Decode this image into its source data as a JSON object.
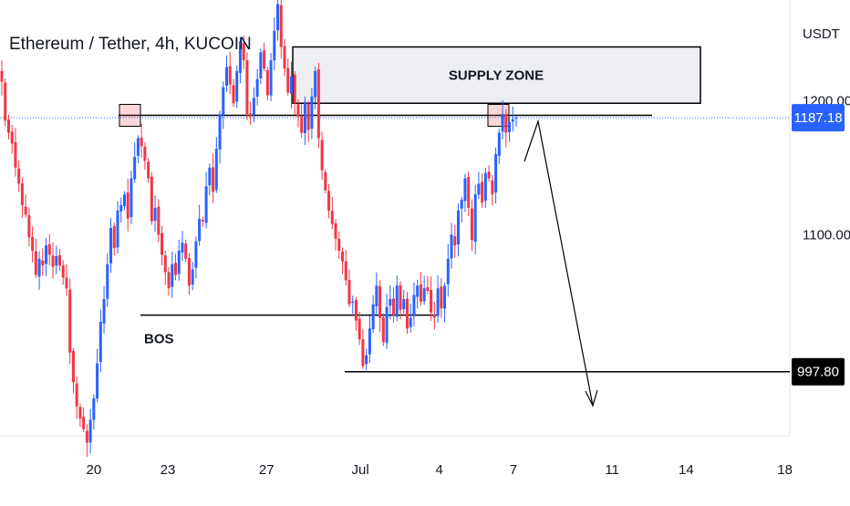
{
  "chart_data": {
    "type": "candlestick",
    "title": "Ethereum / Tether, 4h, KUCOIN",
    "currency": "USDT",
    "y_range": [
      950,
      1275
    ],
    "y_ticks": [
      {
        "value": 1200,
        "label": "1200.00"
      },
      {
        "value": 1100,
        "label": "1100.00"
      }
    ],
    "x_ticks": [
      {
        "x": 20,
        "label": "20"
      },
      {
        "x": 23,
        "label": "23"
      },
      {
        "x": 27,
        "label": "27"
      },
      {
        "x": 30.8,
        "label": "Jul"
      },
      {
        "x": 34,
        "label": "4"
      },
      {
        "x": 37,
        "label": "7"
      },
      {
        "x": 41,
        "label": "11"
      },
      {
        "x": 44,
        "label": "14"
      },
      {
        "x": 48,
        "label": "18"
      }
    ],
    "x_range": [
      16.2,
      48.2
    ],
    "last_price": {
      "value": 1187.18,
      "label": "1187.18"
    },
    "target_price": {
      "value": 997.8,
      "label": "997.80"
    },
    "colors": {
      "up": "#2962ff",
      "down": "#f23645",
      "tag": "#2962ff",
      "target_tag": "#000000"
    },
    "annotations": {
      "supply_zone": "SUPPLY ZONE",
      "bos": "BOS"
    },
    "levels": {
      "supply_zone_low": 1198,
      "supply_zone_high": 1240,
      "resistance": 1189,
      "bos": 1040,
      "target": 997.8
    },
    "closes": [
      1214,
      1185,
      1176,
      1168,
      1150,
      1138,
      1122,
      1115,
      1098,
      1088,
      1070,
      1082,
      1077,
      1092,
      1085,
      1076,
      1084,
      1077,
      1068,
      1060,
      1012,
      990,
      972,
      963,
      955,
      945,
      962,
      978,
      1004,
      1035,
      1052,
      1078,
      1105,
      1090,
      1118,
      1122,
      1130,
      1112,
      1142,
      1158,
      1172,
      1166,
      1155,
      1142,
      1110,
      1120,
      1100,
      1085,
      1072,
      1060,
      1078,
      1070,
      1088,
      1094,
      1082,
      1062,
      1074,
      1095,
      1112,
      1110,
      1136,
      1150,
      1132,
      1164,
      1190,
      1210,
      1225,
      1212,
      1198,
      1222,
      1244,
      1230,
      1190,
      1188,
      1202,
      1216,
      1236,
      1224,
      1204,
      1230,
      1252,
      1272,
      1240,
      1224,
      1206,
      1218,
      1198,
      1188,
      1176,
      1199,
      1178,
      1203,
      1222,
      1172,
      1148,
      1133,
      1118,
      1108,
      1097,
      1088,
      1080,
      1066,
      1048,
      1050,
      1036,
      1022,
      1002,
      1010,
      1030,
      1048,
      1062,
      1038,
      1020,
      1046,
      1052,
      1040,
      1062,
      1044,
      1052,
      1030,
      1038,
      1055,
      1062,
      1050,
      1060,
      1058,
      1042,
      1038,
      1060,
      1045,
      1062,
      1082,
      1100,
      1092,
      1118,
      1126,
      1142,
      1120,
      1096,
      1130,
      1138,
      1124,
      1146,
      1142,
      1130,
      1160,
      1176,
      1190,
      1176,
      1184,
      1186,
      1187
    ]
  }
}
